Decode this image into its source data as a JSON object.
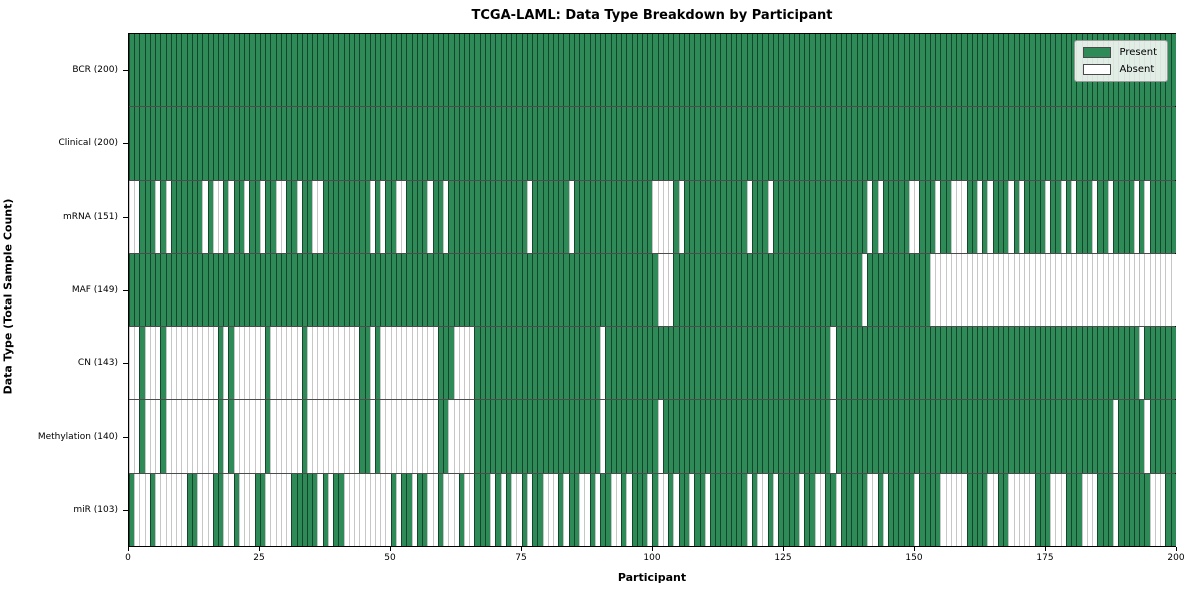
{
  "title": "TCGA-LAML: Data Type Breakdown by Participant",
  "x_axis_label": "Participant",
  "y_axis_label": "Data Type (Total Sample Count)",
  "legend": {
    "items": [
      {
        "label": "Present",
        "color": "#2e8b57"
      },
      {
        "label": "Absent",
        "color": "#ffffff"
      }
    ]
  },
  "colors": {
    "present": "#2e8b57",
    "absent": "#ffffff",
    "axis": "#000000"
  },
  "chart_data": {
    "type": "heatmap",
    "title": "TCGA-LAML: Data Type Breakdown by Participant",
    "xlabel": "Participant",
    "ylabel": "Data Type (Total Sample Count)",
    "x_range": [
      0,
      200
    ],
    "x_ticks": [
      0,
      25,
      50,
      75,
      100,
      125,
      150,
      175,
      200
    ],
    "n_participants": 200,
    "legend_entries": [
      "Present",
      "Absent"
    ],
    "legend_position": "upper right",
    "grid": false,
    "rows": [
      {
        "label": "BCR (200)",
        "total_present": 200,
        "presence": "11111111111111111111111111111111111111111111111111111111111111111111111111111111111111111111111111111111111111111111111111111111111111111111111111111111111111111111111111111111111111111111111111111111"
      },
      {
        "label": "Clinical (200)",
        "total_present": 200,
        "presence": "11111111111111111111111111111111111111111111111111111111111111111111111111111111111111111111111111111111111111111111111111111111111111111111111111111111111111111111111111111111111111111111111111111111"
      },
      {
        "label": "mRNA (151)",
        "total_present": 151,
        "presence": "00111010111111010010110110110011011001111111110101100111101101111111111111110111111101111111111111110000101111111111110111011111111111111111101011111001110110001101011101011110110101110110111101011111"
      },
      {
        "label": "MAF (149)",
        "total_present": 149,
        "presence": "11111111111111111111111111111111111111111111111111111111111111111111111111111111111111111111111111111000111111111111111111111111111111111111011111111111100000000000000000000000000000000000000000000000"
      },
      {
        "label": "CN (143)",
        "total_present": 143,
        "presence": "00100010000000000101000000100000010000000000110100000000000111000011111111111111111111111101111111111111111111111111111111111111111111011111111111111111111111111111111111111111111111111111111110111111"
      },
      {
        "label": "Methylation (140)",
        "total_present": 140,
        "presence": "00100010000000000101000000100000010000000000110100000000000110000011111111111111111111111101111111111011111111111111111111111111111111011111111111111111111111111111111111111111111111111111011111011111"
      },
      {
        "label": "miR (103)",
        "total_present": 103,
        "presence": "10001000000110001100100011000001111101011000000000101101100100010011101010010110001011001011001011101001011011011111110100101111011001101111100101111101111000001111001100000111000111000111011111100011"
      }
    ]
  }
}
